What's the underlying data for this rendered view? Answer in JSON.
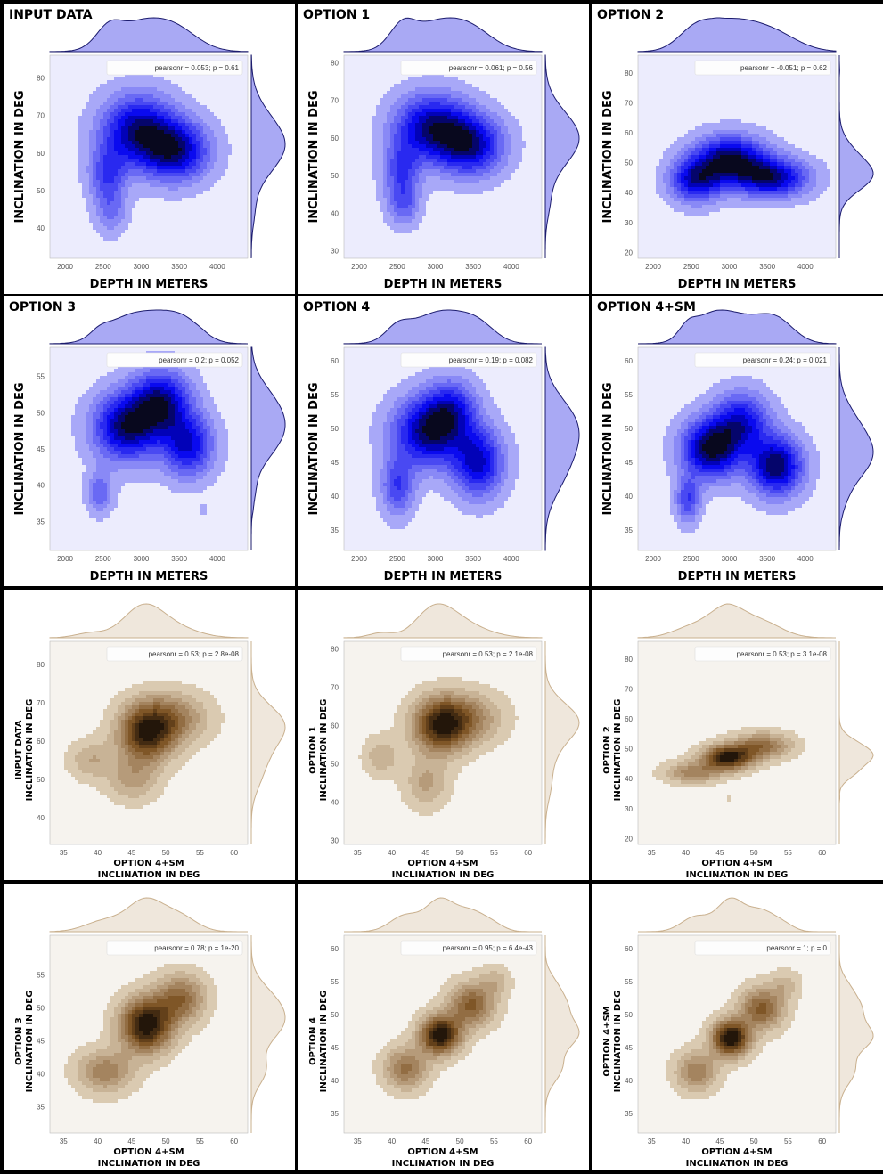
{
  "figure_colors": {
    "blue": "#0000ee",
    "blue_bg": "#ececfd",
    "blue_marg": "#a9a9f4",
    "blue_marg_line": "#1c1c6e",
    "brown": "#7a4f1f",
    "brown_bg": "#f6f3ee",
    "brown_marg": "#efe7dc",
    "brown_marg_line": "#c9b08e"
  },
  "chart_data": [
    {
      "type": "kde_joint",
      "theme": "blue",
      "title": "INPUT DATA",
      "xlabel": "DEPTH IN METERS",
      "ylabel": "INCLINATION IN DEG",
      "ylabel_note": "",
      "ylabel_sub": "",
      "xlabel_sub": "",
      "xlim": [
        1800,
        4400
      ],
      "ylim": [
        32,
        86
      ],
      "xticks": [
        2000,
        2500,
        3000,
        3500,
        4000
      ],
      "yticks": [
        40,
        50,
        60,
        70,
        80
      ],
      "stat": "pearsonr = 0.053; p = 0.61",
      "blobs": [
        {
          "x": 2950,
          "y": 66,
          "sx": 330,
          "sy": 6.5,
          "w": 1.0
        },
        {
          "x": 3450,
          "y": 60.5,
          "sx": 300,
          "sy": 5.5,
          "w": 0.95
        },
        {
          "x": 2550,
          "y": 54,
          "sx": 170,
          "sy": 5.5,
          "w": 0.55
        },
        {
          "x": 2600,
          "y": 44,
          "sx": 140,
          "sy": 4,
          "w": 0.3
        }
      ]
    },
    {
      "type": "kde_joint",
      "theme": "blue",
      "title": "OPTION 1",
      "xlabel": "DEPTH IN METERS",
      "ylabel": "INCLINATION IN DEG",
      "ylabel_note": "",
      "ylabel_sub": "",
      "xlabel_sub": "",
      "xlim": [
        1800,
        4400
      ],
      "ylim": [
        28,
        82
      ],
      "xticks": [
        2000,
        2500,
        3000,
        3500,
        4000
      ],
      "yticks": [
        30,
        40,
        50,
        60,
        70,
        80
      ],
      "stat": "pearsonr = 0.061; p = 0.56",
      "blobs": [
        {
          "x": 2950,
          "y": 63,
          "sx": 330,
          "sy": 6,
          "w": 1.0
        },
        {
          "x": 3450,
          "y": 58,
          "sx": 300,
          "sy": 5.5,
          "w": 0.95
        },
        {
          "x": 2550,
          "y": 51,
          "sx": 170,
          "sy": 6,
          "w": 0.55
        },
        {
          "x": 2580,
          "y": 42,
          "sx": 140,
          "sy": 4,
          "w": 0.35
        }
      ]
    },
    {
      "type": "kde_joint",
      "theme": "blue",
      "title": "OPTION 2",
      "xlabel": "DEPTH IN METERS",
      "ylabel": "INCLINATION IN DEG",
      "ylabel_note": "",
      "ylabel_sub": "",
      "xlabel_sub": "",
      "xlim": [
        1800,
        4400
      ],
      "ylim": [
        18,
        86
      ],
      "xticks": [
        2000,
        2500,
        3000,
        3500,
        4000
      ],
      "yticks": [
        20,
        30,
        40,
        50,
        60,
        70,
        80
      ],
      "stat": "pearsonr = -0.051; p = 0.62",
      "blobs": [
        {
          "x": 3000,
          "y": 51,
          "sx": 320,
          "sy": 5.5,
          "w": 1.0
        },
        {
          "x": 3550,
          "y": 45,
          "sx": 330,
          "sy": 4.5,
          "w": 0.9
        },
        {
          "x": 2550,
          "y": 44,
          "sx": 230,
          "sy": 5,
          "w": 0.8
        },
        {
          "x": 2850,
          "y": 81,
          "sx": 60,
          "sy": 1.2,
          "w": 0.12
        }
      ]
    },
    {
      "type": "kde_joint",
      "theme": "blue",
      "title": "OPTION 3",
      "xlabel": "DEPTH IN METERS",
      "ylabel": "INCLINATION IN DEG",
      "ylabel_note": "",
      "ylabel_sub": "",
      "xlabel_sub": "",
      "xlim": [
        1800,
        4400
      ],
      "ylim": [
        31,
        59
      ],
      "xticks": [
        2000,
        2500,
        3000,
        3500,
        4000
      ],
      "yticks": [
        35,
        40,
        45,
        50,
        55
      ],
      "stat": "pearsonr = 0.2; p = 0.052",
      "blobs": [
        {
          "x": 2800,
          "y": 48,
          "sx": 300,
          "sy": 3.2,
          "w": 1.0
        },
        {
          "x": 3250,
          "y": 51.5,
          "sx": 260,
          "sy": 3,
          "w": 0.9
        },
        {
          "x": 3600,
          "y": 45.5,
          "sx": 230,
          "sy": 3,
          "w": 0.8
        },
        {
          "x": 2450,
          "y": 39,
          "sx": 120,
          "sy": 2,
          "w": 0.4
        },
        {
          "x": 3800,
          "y": 36.5,
          "sx": 50,
          "sy": 0.6,
          "w": 0.12
        }
      ]
    },
    {
      "type": "kde_joint",
      "theme": "blue",
      "title": "OPTION 4",
      "xlabel": "DEPTH IN METERS",
      "ylabel": "INCLINATION IN DEG",
      "ylabel_note": "",
      "ylabel_sub": "",
      "xlabel_sub": "",
      "xlim": [
        1800,
        4400
      ],
      "ylim": [
        32,
        62
      ],
      "xticks": [
        2000,
        2500,
        3000,
        3500,
        4000
      ],
      "yticks": [
        35,
        40,
        45,
        50,
        55,
        60
      ],
      "stat": "pearsonr = 0.19; p = 0.082",
      "blobs": [
        {
          "x": 2900,
          "y": 49.5,
          "sx": 320,
          "sy": 3.5,
          "w": 1.0
        },
        {
          "x": 3550,
          "y": 45,
          "sx": 230,
          "sy": 3.5,
          "w": 0.85
        },
        {
          "x": 3200,
          "y": 53,
          "sx": 230,
          "sy": 3,
          "w": 0.6
        },
        {
          "x": 2500,
          "y": 41.5,
          "sx": 150,
          "sy": 3,
          "w": 0.55
        }
      ]
    },
    {
      "type": "kde_joint",
      "theme": "blue",
      "title": "OPTION 4+SM",
      "xlabel": "DEPTH IN METERS",
      "ylabel": "INCLINATION IN DEG",
      "ylabel_note": "",
      "ylabel_sub": "",
      "xlabel_sub": "",
      "xlim": [
        1800,
        4400
      ],
      "ylim": [
        32,
        62
      ],
      "xticks": [
        2000,
        2500,
        3000,
        3500,
        4000
      ],
      "yticks": [
        35,
        40,
        45,
        50,
        55,
        60
      ],
      "stat": "pearsonr = 0.24; p = 0.021",
      "blobs": [
        {
          "x": 2750,
          "y": 47,
          "sx": 260,
          "sy": 3,
          "w": 1.0
        },
        {
          "x": 3600,
          "y": 44.5,
          "sx": 240,
          "sy": 3,
          "w": 0.95
        },
        {
          "x": 3150,
          "y": 51,
          "sx": 250,
          "sy": 3,
          "w": 0.7
        },
        {
          "x": 2450,
          "y": 39.5,
          "sx": 110,
          "sy": 2.3,
          "w": 0.5
        }
      ]
    },
    {
      "type": "kde_joint",
      "theme": "brown",
      "title": "",
      "xlabel": "OPTION 4+SM",
      "xlabel_sub": "INCLINATION IN DEG",
      "ylabel": "INPUT DATA",
      "ylabel_sub": "INCLINATION IN DEG",
      "ylabel_note": "",
      "xlim": [
        33,
        62
      ],
      "ylim": [
        33,
        86
      ],
      "xticks": [
        35,
        40,
        45,
        50,
        55,
        60
      ],
      "yticks": [
        40,
        50,
        60,
        70,
        80
      ],
      "stat": "pearsonr = 0.53; p = 2.8e-08",
      "blobs": [
        {
          "x": 47,
          "y": 62,
          "sx": 2.8,
          "sy": 5.2,
          "w": 1.0
        },
        {
          "x": 51,
          "y": 66,
          "sx": 3.5,
          "sy": 4.5,
          "w": 0.5
        },
        {
          "x": 39,
          "y": 55,
          "sx": 2.2,
          "sy": 3.5,
          "w": 0.3
        },
        {
          "x": 45,
          "y": 50,
          "sx": 2.5,
          "sy": 4,
          "w": 0.35
        }
      ]
    },
    {
      "type": "kde_joint",
      "theme": "brown",
      "title": "",
      "xlabel": "OPTION 4+SM",
      "xlabel_sub": "INCLINATION IN DEG",
      "ylabel": "OPTION 1",
      "ylabel_sub": "INCLINATION IN DEG",
      "ylabel_note": "",
      "xlim": [
        33,
        62
      ],
      "ylim": [
        29,
        82
      ],
      "xticks": [
        35,
        40,
        45,
        50,
        55,
        60
      ],
      "yticks": [
        30,
        40,
        50,
        60,
        70,
        80
      ],
      "stat": "pearsonr = 0.53; p = 2.1e-08",
      "blobs": [
        {
          "x": 47,
          "y": 60,
          "sx": 2.8,
          "sy": 5,
          "w": 1.0
        },
        {
          "x": 51,
          "y": 62,
          "sx": 3.5,
          "sy": 4.5,
          "w": 0.5
        },
        {
          "x": 38.5,
          "y": 52,
          "sx": 1.8,
          "sy": 3.5,
          "w": 0.3
        },
        {
          "x": 45,
          "y": 45,
          "sx": 2.2,
          "sy": 4.5,
          "w": 0.35
        }
      ]
    },
    {
      "type": "kde_joint",
      "theme": "brown",
      "title": "",
      "xlabel": "OPTION 4+SM",
      "xlabel_sub": "INCLINATION IN DEG",
      "ylabel": "OPTION 2",
      "ylabel_sub": "INCLINATION IN DEG",
      "ylabel_note": "",
      "xlim": [
        33,
        62
      ],
      "ylim": [
        18,
        86
      ],
      "xticks": [
        35,
        40,
        45,
        50,
        55,
        60
      ],
      "yticks": [
        20,
        30,
        40,
        50,
        60,
        70,
        80
      ],
      "stat": "pearsonr = 0.53; p = 3.1e-08",
      "blobs": [
        {
          "x": 46,
          "y": 47,
          "sx": 2.5,
          "sy": 2.8,
          "w": 1.0
        },
        {
          "x": 51,
          "y": 51,
          "sx": 3,
          "sy": 3,
          "w": 0.55
        },
        {
          "x": 41,
          "y": 42,
          "sx": 2.8,
          "sy": 2.5,
          "w": 0.45
        },
        {
          "x": 46,
          "y": 33.5,
          "sx": 0.6,
          "sy": 0.8,
          "w": 0.08
        }
      ]
    },
    {
      "type": "kde_joint",
      "theme": "brown",
      "title": "",
      "xlabel": "OPTION 4+SM",
      "xlabel_sub": "INCLINATION IN DEG",
      "ylabel": "OPTION 3",
      "ylabel_sub": "INCLINATION IN DEG",
      "ylabel_note": "",
      "xlim": [
        33,
        62
      ],
      "ylim": [
        31,
        61
      ],
      "xticks": [
        35,
        40,
        45,
        50,
        55,
        60
      ],
      "yticks": [
        35,
        40,
        45,
        50,
        55
      ],
      "stat": "pearsonr = 0.78; p = 1e-20",
      "blobs": [
        {
          "x": 47,
          "y": 47.5,
          "sx": 2.6,
          "sy": 2.8,
          "w": 1.0
        },
        {
          "x": 52,
          "y": 51.5,
          "sx": 2.5,
          "sy": 2.5,
          "w": 0.55
        },
        {
          "x": 41,
          "y": 40.5,
          "sx": 2.8,
          "sy": 2.2,
          "w": 0.45
        }
      ]
    },
    {
      "type": "kde_joint",
      "theme": "brown",
      "title": "",
      "xlabel": "OPTION 4+SM",
      "xlabel_sub": "INCLINATION IN DEG",
      "ylabel": "OPTION 4",
      "ylabel_sub": "INCLINATION IN DEG",
      "ylabel_note": "",
      "xlim": [
        33,
        62
      ],
      "ylim": [
        32,
        62
      ],
      "xticks": [
        35,
        40,
        45,
        50,
        55,
        60
      ],
      "yticks": [
        35,
        40,
        45,
        50,
        55,
        60
      ],
      "stat": "pearsonr = 0.95; p = 6.4e-43",
      "blobs": [
        {
          "x": 47,
          "y": 47,
          "sx": 2.0,
          "sy": 2.0,
          "w": 1.0
        },
        {
          "x": 51.5,
          "y": 51.5,
          "sx": 2.3,
          "sy": 2.3,
          "w": 0.6
        },
        {
          "x": 42,
          "y": 42,
          "sx": 2.2,
          "sy": 2.2,
          "w": 0.5
        },
        {
          "x": 55,
          "y": 55,
          "sx": 1.6,
          "sy": 1.6,
          "w": 0.2
        }
      ]
    },
    {
      "type": "kde_joint",
      "theme": "brown",
      "title": "",
      "xlabel": "OPTION 4+SM",
      "xlabel_sub": "INCLINATION IN DEG",
      "ylabel": "OPTION 4+SM",
      "ylabel_sub": "INCLINATION IN DEG",
      "ylabel_note": "",
      "xlim": [
        33,
        62
      ],
      "ylim": [
        32,
        62
      ],
      "xticks": [
        35,
        40,
        45,
        50,
        55,
        60
      ],
      "yticks": [
        35,
        40,
        45,
        50,
        55,
        60
      ],
      "stat": "pearsonr = 1; p = 0",
      "blobs": [
        {
          "x": 46.5,
          "y": 46.5,
          "sx": 1.9,
          "sy": 1.9,
          "w": 1.0
        },
        {
          "x": 51,
          "y": 51,
          "sx": 2.2,
          "sy": 2.2,
          "w": 0.6
        },
        {
          "x": 41.5,
          "y": 41.5,
          "sx": 2.1,
          "sy": 2.1,
          "w": 0.45
        },
        {
          "x": 54.5,
          "y": 54.5,
          "sx": 1.5,
          "sy": 1.5,
          "w": 0.2
        }
      ]
    }
  ]
}
